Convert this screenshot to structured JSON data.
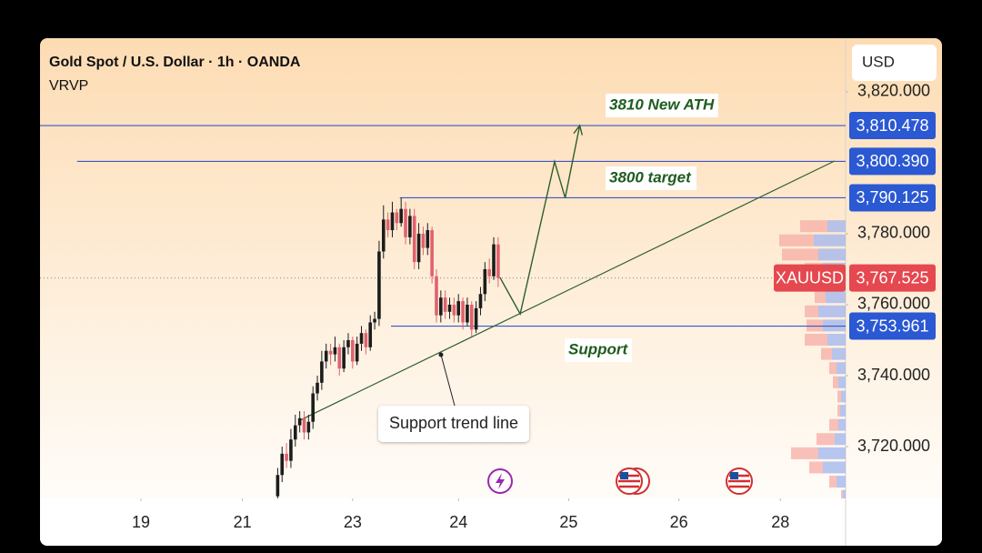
{
  "chart_data": {
    "type": "candlestick",
    "title": "Gold Spot / U.S. Dollar · 1h · OANDA",
    "indicator": "VRVP",
    "currency": "USD",
    "symbol": "XAUUSD",
    "up_color": "#1c1c1c",
    "down_color": "#e0626f",
    "x": [
      -17,
      -16,
      -15,
      -14,
      -13,
      -12,
      -11,
      -10,
      -9,
      -8,
      -7,
      -6,
      -5,
      -4,
      -3,
      -2,
      -1,
      0,
      1,
      2,
      3,
      4,
      5,
      6,
      7,
      8,
      9,
      10,
      11,
      12,
      13,
      14,
      15,
      16,
      17,
      18,
      19,
      20,
      21,
      22,
      23,
      24,
      25,
      26,
      27,
      28,
      29,
      30,
      31,
      32,
      33
    ],
    "open": [
      3706,
      3712,
      3718,
      3716,
      3722,
      3726,
      3728,
      3724,
      3727,
      3735,
      3738,
      3744,
      3747,
      3746,
      3748,
      3742,
      3748,
      3750,
      3744,
      3749,
      3752,
      3748,
      3755,
      3756,
      3775,
      3784,
      3781,
      3786,
      3783,
      3787,
      3779,
      3785,
      3772,
      3780,
      3776,
      3781,
      3768,
      3757,
      3762,
      3758,
      3760,
      3757,
      3761,
      3755,
      3760,
      3753,
      3759,
      3763,
      3770,
      3768,
      3777
    ],
    "high": [
      3714,
      3720,
      3721,
      3725,
      3729,
      3730,
      3730,
      3729,
      3737,
      3740,
      3747,
      3749,
      3749,
      3751,
      3749,
      3750,
      3752,
      3751,
      3751,
      3754,
      3753,
      3757,
      3758,
      3778,
      3788,
      3786,
      3789,
      3787,
      3790.1,
      3789,
      3787,
      3787,
      3783,
      3782,
      3783,
      3782,
      3770,
      3764,
      3764,
      3762,
      3762,
      3763,
      3762,
      3762,
      3761,
      3761,
      3765,
      3772,
      3773,
      3779,
      3779
    ],
    "low": [
      3705,
      3710,
      3714,
      3714,
      3720,
      3724,
      3722,
      3722,
      3725,
      3733,
      3736,
      3742,
      3743,
      3744,
      3740,
      3741,
      3746,
      3742,
      3743,
      3747,
      3746,
      3747,
      3753,
      3754,
      3773,
      3779,
      3779,
      3781,
      3782,
      3777,
      3777,
      3770,
      3770,
      3774,
      3774,
      3766,
      3755,
      3755,
      3756,
      3756,
      3755,
      3755,
      3753,
      3754,
      3751,
      3752,
      3757,
      3761,
      3766,
      3767,
      3765
    ],
    "close": [
      3712,
      3718,
      3716,
      3722,
      3726,
      3728,
      3724,
      3727,
      3735,
      3738,
      3744,
      3747,
      3746,
      3748,
      3742,
      3748,
      3750,
      3744,
      3749,
      3752,
      3748,
      3755,
      3756,
      3775,
      3784,
      3781,
      3786,
      3783,
      3787,
      3779,
      3785,
      3772,
      3780,
      3776,
      3781,
      3768,
      3757,
      3762,
      3758,
      3760,
      3757,
      3761,
      3755,
      3760,
      3753,
      3759,
      3763,
      3770,
      3768,
      3777,
      3767.525
    ],
    "xlim": [
      -70.9,
      111.8
    ],
    "ylim": [
      3705.4,
      3835.1
    ],
    "xticks": [
      {
        "value": -48,
        "label": "19"
      },
      {
        "value": -25,
        "label": "21"
      },
      {
        "value": 0,
        "label": "23"
      },
      {
        "value": 24,
        "label": "24"
      },
      {
        "value": 49,
        "label": "25"
      },
      {
        "value": 74,
        "label": "26"
      },
      {
        "value": 97,
        "label": "28"
      }
    ],
    "yticks": [
      {
        "value": 3820,
        "label": "3,820.000"
      },
      {
        "value": 3780,
        "label": "3,780.000"
      },
      {
        "value": 3760,
        "label": "3,760.000"
      },
      {
        "value": 3740,
        "label": "3,740.000"
      },
      {
        "value": 3720,
        "label": "3,720.000"
      }
    ],
    "price_lines": [
      {
        "value": 3810.478,
        "label": "3,810.478",
        "from": -70.9
      },
      {
        "value": 3800.39,
        "label": "3,800.390",
        "from": -62.5
      },
      {
        "value": 3790.125,
        "label": "3,790.125",
        "from": 10.7
      },
      {
        "value": 3753.961,
        "label": "3,753.961",
        "from": 8.7
      }
    ],
    "line_color": "#3a56c9",
    "current_price": {
      "value": 3767.525,
      "label": "3,767.525"
    },
    "trend_line": {
      "x": [
        -12,
        109.3
      ],
      "y": [
        3727.4,
        3800.5
      ]
    },
    "projection": {
      "x": [
        33.4,
        38,
        45.8,
        48.2,
        51.5
      ],
      "y": [
        3767.7,
        3757.4,
        3800.3,
        3790.1,
        3810.5
      ]
    },
    "volume_profile": {
      "price": [
        3782,
        3778,
        3774,
        3770,
        3766,
        3762,
        3758,
        3754,
        3750,
        3746,
        3742,
        3738,
        3734,
        3730,
        3726,
        3722,
        3718,
        3714,
        3710,
        3706
      ],
      "buy": [
        20,
        35,
        30,
        25,
        18,
        22,
        30,
        25,
        20,
        15,
        10,
        8,
        5,
        6,
        8,
        12,
        30,
        25,
        10,
        3
      ],
      "sell": [
        30,
        38,
        40,
        20,
        15,
        12,
        15,
        18,
        25,
        12,
        8,
        6,
        4,
        3,
        10,
        20,
        30,
        15,
        8,
        2
      ]
    },
    "annotations": [
      "3810 New ATH",
      "3800 target",
      "Support",
      "Support trend line"
    ]
  }
}
